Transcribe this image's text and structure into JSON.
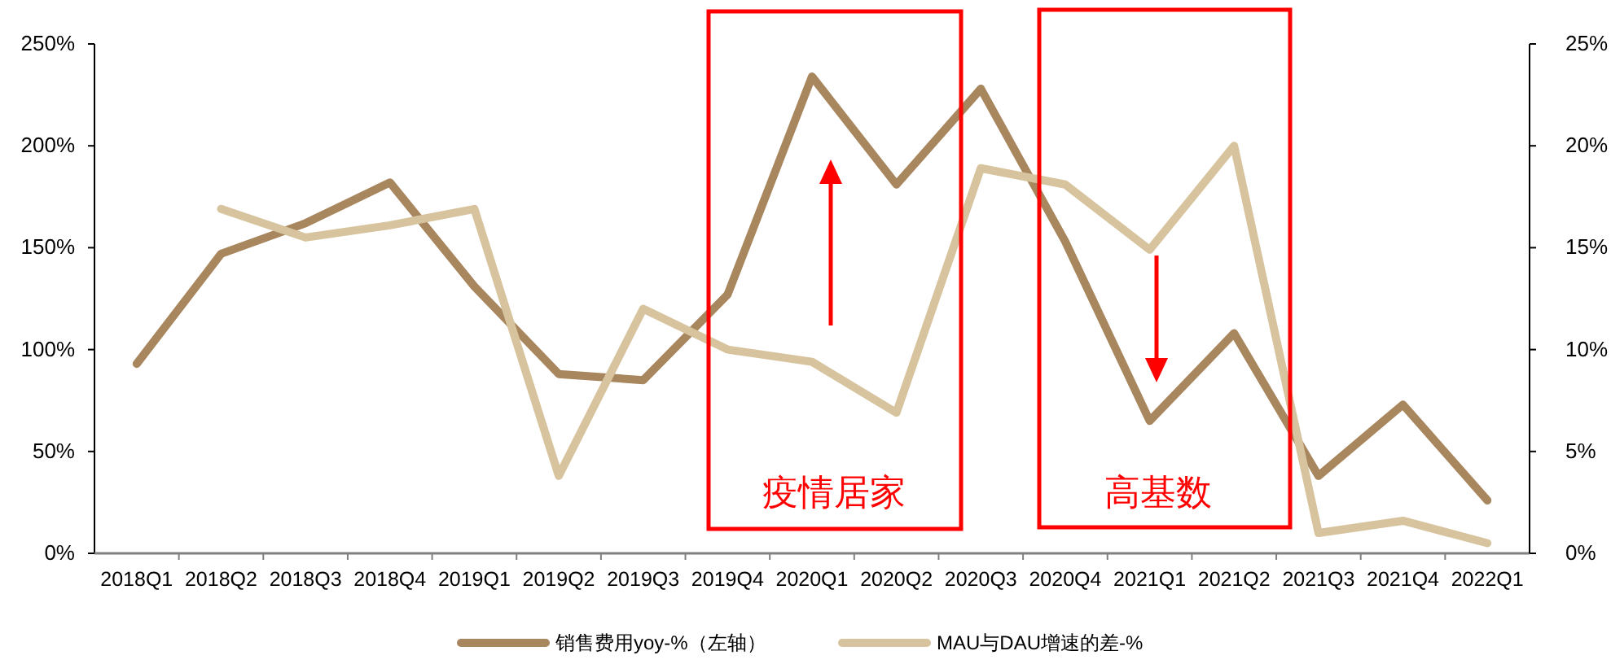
{
  "chart_data": {
    "type": "line",
    "categories": [
      "2018Q1",
      "2018Q2",
      "2018Q3",
      "2018Q4",
      "2019Q1",
      "2019Q2",
      "2019Q3",
      "2019Q4",
      "2020Q1",
      "2020Q2",
      "2020Q3",
      "2020Q4",
      "2021Q1",
      "2021Q2",
      "2021Q3",
      "2021Q4",
      "2022Q1"
    ],
    "series": [
      {
        "name": "销售费用yoy-%（左轴）",
        "color": "#a8865e",
        "values": [
          93,
          147,
          162,
          182,
          131,
          88,
          85,
          127,
          234,
          181,
          228,
          153,
          65,
          108,
          38,
          73,
          26
        ]
      },
      {
        "name": "MAU与DAU增速的差-%",
        "color": "#d7c49e",
        "axis": "y2",
        "values": [
          null,
          16.9,
          15.5,
          16.1,
          16.9,
          3.8,
          12.0,
          10.0,
          9.4,
          6.9,
          18.9,
          18.1,
          14.9,
          20.0,
          1.0,
          1.6,
          0.5
        ]
      }
    ],
    "ylim": [
      0,
      250
    ],
    "yticks": [
      {
        "value": 0,
        "label": "0%"
      },
      {
        "value": 50,
        "label": "50%"
      },
      {
        "value": 100,
        "label": "100%"
      },
      {
        "value": 150,
        "label": "150%"
      },
      {
        "value": 200,
        "label": "200%"
      },
      {
        "value": 250,
        "label": "250%"
      }
    ],
    "y2lim": [
      0,
      25
    ],
    "y2ticks": [
      {
        "value": 0,
        "label": "0%"
      },
      {
        "value": 5,
        "label": "5%"
      },
      {
        "value": 10,
        "label": "10%"
      },
      {
        "value": 15,
        "label": "15%"
      },
      {
        "value": 20,
        "label": "20%"
      },
      {
        "value": 25,
        "label": "25%"
      }
    ],
    "annotations": [
      "疫情居家",
      "高基数"
    ],
    "legend": "bottom",
    "grid": false,
    "marker": "none",
    "line_style": "solid"
  }
}
